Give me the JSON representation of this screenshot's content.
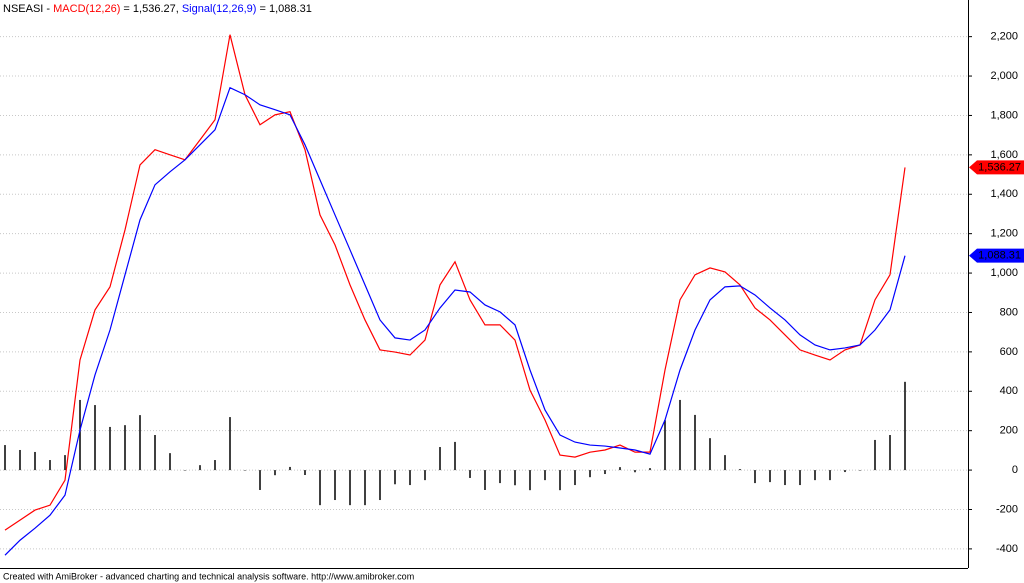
{
  "chart_data": {
    "type": "macd",
    "title": "NSEASI - ",
    "footer": "Created with AmiBroker - advanced charting and technical analysis software. http://www.amibroker.com",
    "ylim": [
      -497,
      2386
    ],
    "yticks": [
      {
        "value": -400,
        "label": "-400"
      },
      {
        "value": -200,
        "label": "-200"
      },
      0,
      200,
      400,
      600,
      800,
      {
        "value": 1000,
        "label": "1,000"
      },
      {
        "value": 1200,
        "label": "1,200"
      },
      {
        "value": 1400,
        "label": "1,400"
      },
      {
        "value": 1600,
        "label": "1,600"
      },
      {
        "value": 1800,
        "label": "1,800"
      },
      {
        "value": 2000,
        "label": "2,000"
      },
      {
        "value": 2200,
        "label": "2,200"
      }
    ],
    "grid": true,
    "series": [
      {
        "name": "MACD(12,26)",
        "color": "#ff0000",
        "header_value": " = 1,536.27, ",
        "value_label": "1,536.27",
        "flag_text_color": "#000000",
        "values": [
          -305,
          -254,
          -203,
          -178,
          -51,
          559,
          813,
          930,
          1219,
          1549,
          1626,
          1600,
          1575,
          1676,
          1778,
          2210,
          1905,
          1753,
          1803,
          1819,
          1626,
          1295,
          1143,
          940,
          762,
          610,
          599,
          584,
          660,
          940,
          1057,
          864,
          737,
          737,
          660,
          406,
          254,
          76,
          66,
          91,
          102,
          127,
          91,
          91,
          508,
          864,
          991,
          1026,
          1006,
          940,
          823,
          762,
          686,
          610,
          584,
          559,
          610,
          635,
          864,
          991,
          1536.27
        ]
      },
      {
        "name": "Signal(12,26,9)",
        "color": "#0000ff",
        "header_value": " = 1,088.31",
        "value_label": "1,088.31",
        "flag_text_color": "#ffffff",
        "values": [
          -432,
          -356,
          -295,
          -229,
          -127,
          203,
          483,
          711,
          991,
          1270,
          1448,
          1514,
          1575,
          1651,
          1727,
          1941,
          1905,
          1854,
          1829,
          1803,
          1651,
          1473,
          1295,
          1118,
          940,
          762,
          671,
          660,
          711,
          823,
          914,
          904,
          838,
          803,
          737,
          508,
          305,
          178,
          142,
          127,
          122,
          112,
          102,
          81,
          254,
          508,
          711,
          864,
          930,
          935,
          889,
          823,
          762,
          686,
          635,
          610,
          620,
          635,
          711,
          813,
          1088.31
        ]
      }
    ],
    "histogram": {
      "color": "#000000",
      "values": [
        127,
        102,
        92,
        51,
        76,
        356,
        330,
        219,
        228,
        279,
        178,
        86,
        0,
        25,
        51,
        269,
        0,
        -101,
        -26,
        16,
        -25,
        -178,
        -152,
        -178,
        -178,
        -152,
        -72,
        -76,
        -51,
        117,
        143,
        -40,
        -101,
        -66,
        -77,
        -102,
        -51,
        -102,
        -76,
        -36,
        -20,
        15,
        -11,
        10,
        254,
        356,
        280,
        162,
        76,
        5,
        -66,
        -61,
        -76,
        -76,
        -51,
        -51,
        -10,
        0,
        153,
        178,
        447.96
      ]
    }
  }
}
